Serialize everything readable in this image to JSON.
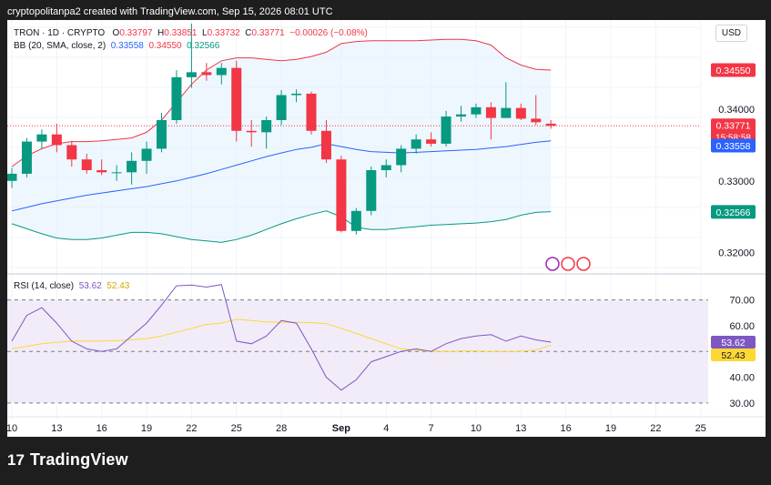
{
  "header": {
    "credit": "cryptopolitanpa2 created with TradingView.com, Sep 15, 2026 08:01 UTC"
  },
  "legend": {
    "symbol": "TRON · 1D · CRYPTO",
    "o_label": "O",
    "o_value": "0.33797",
    "h_label": "H",
    "h_value": "0.33851",
    "l_label": "L",
    "l_value": "0.33732",
    "c_label": "C",
    "c_value": "0.33771",
    "change": "−0.00026 (−0.08%)",
    "bb_label": "BB (20, SMA, close, 2)",
    "bb_basis": "0.33558",
    "bb_upper": "0.34550",
    "bb_lower": "0.32566"
  },
  "rsi_legend": {
    "label": "RSI (14, close)",
    "rsi": "53.62",
    "ma": "52.43"
  },
  "currency": "USD",
  "footer": {
    "brand": "TradingView",
    "logo": "17"
  },
  "colors": {
    "up": "#089981",
    "down": "#f23645",
    "basis": "#2962ff",
    "upper": "#f23645",
    "lower": "#089981",
    "rsi": "#7e57c2",
    "rsi_ma": "#fdd835"
  },
  "chart_data": [
    {
      "type": "candlestick",
      "title": "TRON · 1D · CRYPTO",
      "ylim": [
        0.3175,
        0.3525
      ],
      "x_ticks": [
        {
          "i": 0,
          "label": "10"
        },
        {
          "i": 3,
          "label": "13"
        },
        {
          "i": 6,
          "label": "16"
        },
        {
          "i": 9,
          "label": "19"
        },
        {
          "i": 12,
          "label": "22"
        },
        {
          "i": 15,
          "label": "25"
        },
        {
          "i": 18,
          "label": "28"
        },
        {
          "i": 22,
          "label": "Sep"
        },
        {
          "i": 25,
          "label": "4"
        },
        {
          "i": 28,
          "label": "7"
        },
        {
          "i": 31,
          "label": "10"
        },
        {
          "i": 34,
          "label": "13"
        },
        {
          "i": 37,
          "label": "16"
        },
        {
          "i": 40,
          "label": "19"
        },
        {
          "i": 43,
          "label": "22"
        },
        {
          "i": 46,
          "label": "25"
        }
      ],
      "y_ticks": [
        "0.34000",
        "0.33000",
        "0.32000"
      ],
      "price_labels": {
        "upper": "0.34550",
        "last": "0.33771",
        "countdown": "15:58:58",
        "basis": "0.33558",
        "lower": "0.32566"
      },
      "candles": [
        {
          "o": 0.33,
          "h": 0.3318,
          "l": 0.329,
          "c": 0.331
        },
        {
          "o": 0.331,
          "h": 0.336,
          "l": 0.3305,
          "c": 0.3355
        },
        {
          "o": 0.3355,
          "h": 0.3372,
          "l": 0.3345,
          "c": 0.3365
        },
        {
          "o": 0.3365,
          "h": 0.338,
          "l": 0.334,
          "c": 0.335
        },
        {
          "o": 0.335,
          "h": 0.3356,
          "l": 0.332,
          "c": 0.333
        },
        {
          "o": 0.333,
          "h": 0.3338,
          "l": 0.331,
          "c": 0.3315
        },
        {
          "o": 0.3315,
          "h": 0.333,
          "l": 0.3308,
          "c": 0.3312
        },
        {
          "o": 0.3312,
          "h": 0.3322,
          "l": 0.33,
          "c": 0.3312
        },
        {
          "o": 0.3312,
          "h": 0.334,
          "l": 0.3295,
          "c": 0.3328
        },
        {
          "o": 0.3328,
          "h": 0.3355,
          "l": 0.331,
          "c": 0.3345
        },
        {
          "o": 0.3345,
          "h": 0.3395,
          "l": 0.334,
          "c": 0.3385
        },
        {
          "o": 0.3385,
          "h": 0.3455,
          "l": 0.338,
          "c": 0.3445
        },
        {
          "o": 0.3445,
          "h": 0.352,
          "l": 0.343,
          "c": 0.3452
        },
        {
          "o": 0.3452,
          "h": 0.3465,
          "l": 0.344,
          "c": 0.3448
        },
        {
          "o": 0.3448,
          "h": 0.3465,
          "l": 0.3435,
          "c": 0.3458
        },
        {
          "o": 0.3458,
          "h": 0.3468,
          "l": 0.3355,
          "c": 0.337
        },
        {
          "o": 0.337,
          "h": 0.3385,
          "l": 0.3348,
          "c": 0.3368
        },
        {
          "o": 0.3368,
          "h": 0.339,
          "l": 0.3345,
          "c": 0.3385
        },
        {
          "o": 0.3385,
          "h": 0.3427,
          "l": 0.3378,
          "c": 0.342
        },
        {
          "o": 0.342,
          "h": 0.3428,
          "l": 0.341,
          "c": 0.3422
        },
        {
          "o": 0.3422,
          "h": 0.3425,
          "l": 0.3365,
          "c": 0.337
        },
        {
          "o": 0.337,
          "h": 0.3385,
          "l": 0.3325,
          "c": 0.333
        },
        {
          "o": 0.333,
          "h": 0.3335,
          "l": 0.3228,
          "c": 0.323
        },
        {
          "o": 0.323,
          "h": 0.3262,
          "l": 0.3225,
          "c": 0.3258
        },
        {
          "o": 0.3258,
          "h": 0.332,
          "l": 0.3252,
          "c": 0.3315
        },
        {
          "o": 0.3315,
          "h": 0.333,
          "l": 0.3305,
          "c": 0.3322
        },
        {
          "o": 0.3322,
          "h": 0.335,
          "l": 0.3312,
          "c": 0.3345
        },
        {
          "o": 0.3345,
          "h": 0.3365,
          "l": 0.3338,
          "c": 0.3358
        },
        {
          "o": 0.3358,
          "h": 0.3368,
          "l": 0.3348,
          "c": 0.3352
        },
        {
          "o": 0.3352,
          "h": 0.3398,
          "l": 0.3348,
          "c": 0.339
        },
        {
          "o": 0.339,
          "h": 0.3405,
          "l": 0.3383,
          "c": 0.3393
        },
        {
          "o": 0.3393,
          "h": 0.3408,
          "l": 0.3388,
          "c": 0.3403
        },
        {
          "o": 0.3403,
          "h": 0.341,
          "l": 0.3358,
          "c": 0.3388
        },
        {
          "o": 0.3388,
          "h": 0.3438,
          "l": 0.3388,
          "c": 0.3402
        },
        {
          "o": 0.3402,
          "h": 0.3408,
          "l": 0.3385,
          "c": 0.3387
        },
        {
          "o": 0.3387,
          "h": 0.342,
          "l": 0.3378,
          "c": 0.3382
        },
        {
          "o": 0.338,
          "h": 0.3385,
          "l": 0.3373,
          "c": 0.3377
        }
      ],
      "bb_basis": [
        0.3258,
        0.3263,
        0.3268,
        0.3272,
        0.3276,
        0.328,
        0.3283,
        0.3286,
        0.3289,
        0.3292,
        0.3296,
        0.33,
        0.3305,
        0.331,
        0.3316,
        0.3322,
        0.3328,
        0.3334,
        0.3339,
        0.3344,
        0.3347,
        0.3352,
        0.3348,
        0.3344,
        0.3341,
        0.334,
        0.3339,
        0.334,
        0.3341,
        0.3342,
        0.3343,
        0.3344,
        0.3346,
        0.3348,
        0.3351,
        0.3354,
        0.3356
      ],
      "bb_upper": [
        0.332,
        0.3335,
        0.3345,
        0.3352,
        0.3355,
        0.3355,
        0.3356,
        0.3358,
        0.336,
        0.3368,
        0.3385,
        0.341,
        0.3435,
        0.3455,
        0.3468,
        0.3472,
        0.3472,
        0.347,
        0.3468,
        0.347,
        0.3474,
        0.348,
        0.3492,
        0.3495,
        0.3496,
        0.3496,
        0.3496,
        0.3496,
        0.3497,
        0.3498,
        0.3498,
        0.3496,
        0.349,
        0.3472,
        0.3462,
        0.3456,
        0.3455
      ],
      "bb_lower": [
        0.324,
        0.3233,
        0.3226,
        0.322,
        0.3218,
        0.3218,
        0.322,
        0.3224,
        0.3228,
        0.3228,
        0.3226,
        0.3222,
        0.3218,
        0.3216,
        0.3214,
        0.3218,
        0.3224,
        0.3232,
        0.324,
        0.3247,
        0.3253,
        0.3258,
        0.325,
        0.3235,
        0.3232,
        0.3232,
        0.3234,
        0.3236,
        0.3238,
        0.3239,
        0.324,
        0.3241,
        0.3243,
        0.3246,
        0.3252,
        0.3256,
        0.3257
      ]
    },
    {
      "type": "line",
      "title": "RSI (14, close)",
      "ylim": [
        25,
        78
      ],
      "y_ticks": [
        "70.00",
        "60.00",
        "40.00",
        "30.00"
      ],
      "levels": [
        70,
        50,
        30
      ],
      "price_labels": {
        "rsi": "53.62",
        "ma": "52.43"
      },
      "series": [
        {
          "name": "RSI",
          "values": [
            54,
            64,
            67,
            61,
            54,
            51,
            50,
            51,
            56,
            61,
            68,
            75.5,
            75.8,
            75,
            76,
            54,
            53,
            56,
            62,
            61,
            51,
            40,
            35,
            39,
            46,
            48,
            50,
            51,
            50,
            53,
            55,
            56,
            56.5,
            54,
            56,
            54.5,
            53.62
          ]
        },
        {
          "name": "RSI MA",
          "values": [
            51,
            52,
            53,
            53.5,
            54,
            54,
            54,
            54.2,
            54.5,
            55,
            56,
            57.5,
            59,
            60.5,
            61,
            62.5,
            62,
            61.5,
            61.3,
            61.3,
            61.2,
            60.8,
            59,
            57,
            55,
            53,
            51,
            50.5,
            50,
            50,
            50.2,
            50.2,
            50.1,
            50,
            50.1,
            50.5,
            52.43
          ]
        }
      ]
    }
  ]
}
